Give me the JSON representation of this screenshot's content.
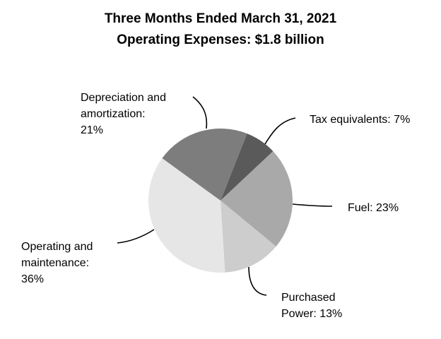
{
  "chart_data": {
    "type": "pie",
    "title": "Three Months Ended March 31, 2021",
    "subtitle": "Operating Expenses: $1.8 billion",
    "slices": [
      {
        "label_lines": [
          "Tax equivalents: 7%"
        ],
        "value": 7,
        "color": "#5a5a5a"
      },
      {
        "label_lines": [
          "Fuel: 23%"
        ],
        "value": 23,
        "color": "#a9a9a9"
      },
      {
        "label_lines": [
          "Purchased",
          "Power: 13%"
        ],
        "value": 13,
        "color": "#cdcdcd"
      },
      {
        "label_lines": [
          "Operating and",
          "maintenance:",
          "36%"
        ],
        "value": 36,
        "color": "#e6e6e6"
      },
      {
        "label_lines": [
          "Depreciation and",
          "amortization:",
          "21%"
        ],
        "value": 21,
        "color": "#7d7d7d"
      }
    ]
  }
}
